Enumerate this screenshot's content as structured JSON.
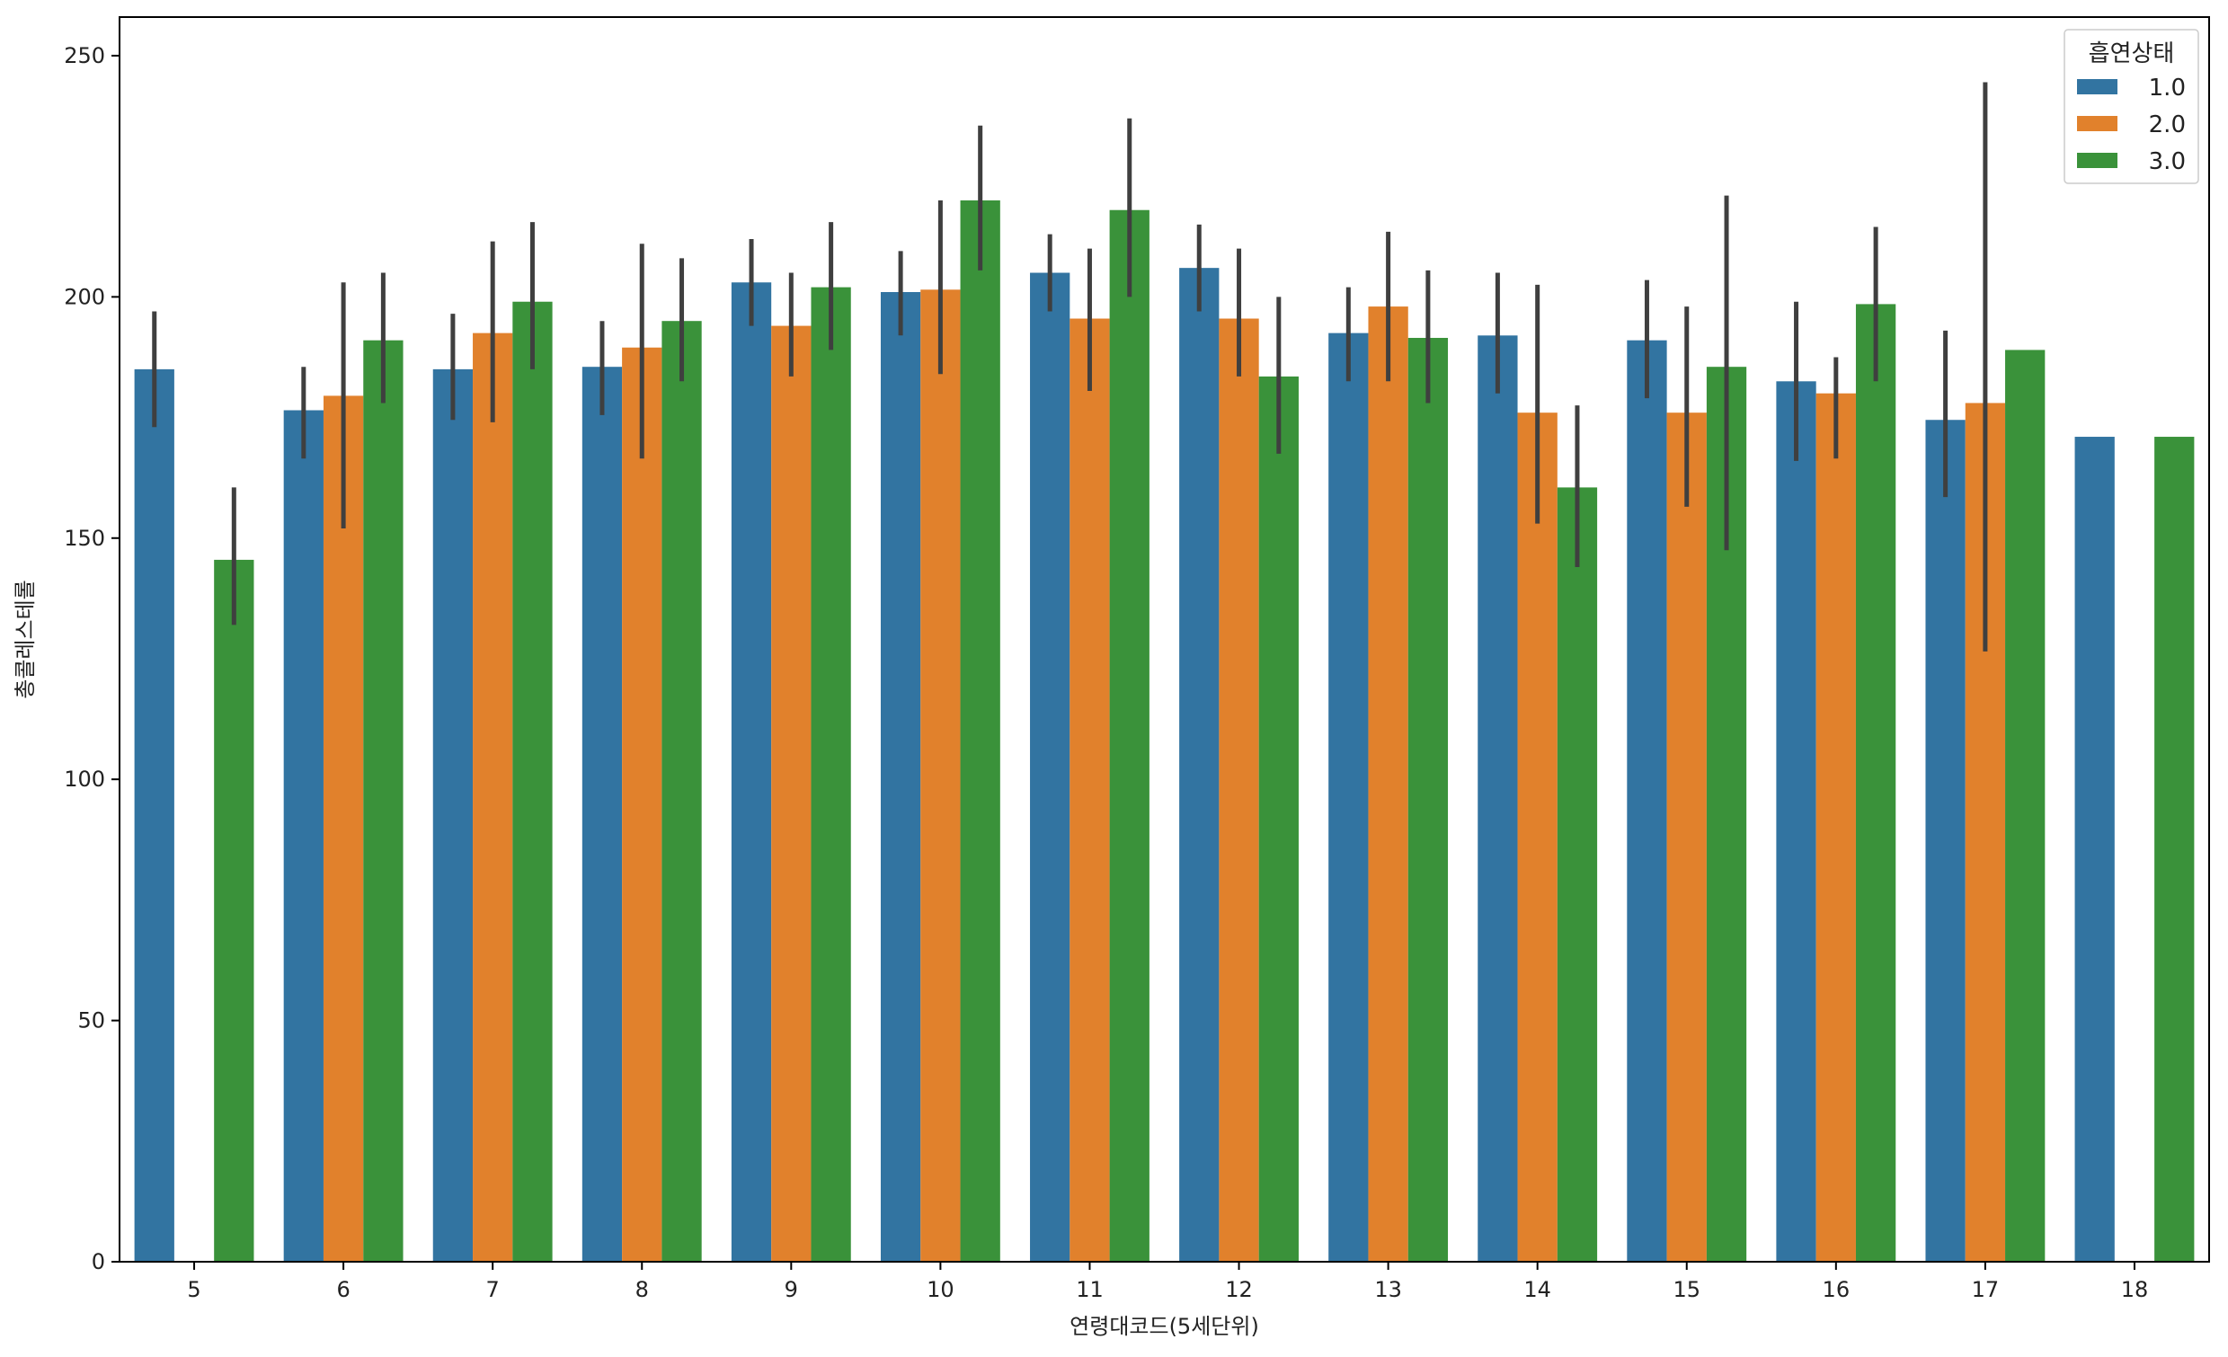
{
  "chart_data": {
    "type": "bar",
    "title": "",
    "xlabel": "연령대코드(5세단위)",
    "ylabel": "총콜레스테롤",
    "ylim": [
      0,
      258
    ],
    "yticks": [
      0,
      50,
      100,
      150,
      200,
      250
    ],
    "categories": [
      "5",
      "6",
      "7",
      "8",
      "9",
      "10",
      "11",
      "12",
      "13",
      "14",
      "15",
      "16",
      "17",
      "18"
    ],
    "legend": {
      "title": "흡연상태",
      "position": "top-right"
    },
    "series": [
      {
        "name": "1.0",
        "color": "#3274a1",
        "values": [
          185,
          176.5,
          185,
          185.5,
          203,
          201,
          205,
          206,
          192.5,
          192,
          191,
          182.5,
          174.5,
          171
        ],
        "err_low": [
          173,
          166.5,
          174.5,
          175.5,
          194,
          192,
          197,
          197,
          182.5,
          180,
          179,
          166,
          158.5,
          null
        ],
        "err_high": [
          197,
          185.5,
          196.5,
          195,
          212,
          209.5,
          213,
          215,
          202,
          205,
          203.5,
          199,
          193,
          null
        ]
      },
      {
        "name": "2.0",
        "color": "#e1812c",
        "values": [
          null,
          179.5,
          192.5,
          189.5,
          194,
          201.5,
          195.5,
          195.5,
          198,
          176,
          176,
          180,
          178,
          null
        ],
        "err_low": [
          null,
          152,
          174,
          166.5,
          183.5,
          184,
          180.5,
          183.5,
          182.5,
          153,
          156.5,
          166.5,
          126.5,
          null
        ],
        "err_high": [
          null,
          203,
          211.5,
          211,
          205,
          220,
          210,
          210,
          213.5,
          202.5,
          198,
          187.5,
          244.5,
          null
        ]
      },
      {
        "name": "3.0",
        "color": "#3a923a",
        "values": [
          145.5,
          191,
          199,
          195,
          202,
          220,
          218,
          183.5,
          191.5,
          160.5,
          185.5,
          198.5,
          189,
          171
        ],
        "err_low": [
          132,
          178,
          185,
          182.5,
          189,
          205.5,
          200,
          167.5,
          178,
          144,
          147.5,
          182.5,
          null,
          null
        ],
        "err_high": [
          160.5,
          205,
          215.5,
          208,
          215.5,
          235.5,
          237,
          200,
          205.5,
          177.5,
          221,
          214.5,
          null,
          null
        ]
      }
    ],
    "grid": false
  }
}
